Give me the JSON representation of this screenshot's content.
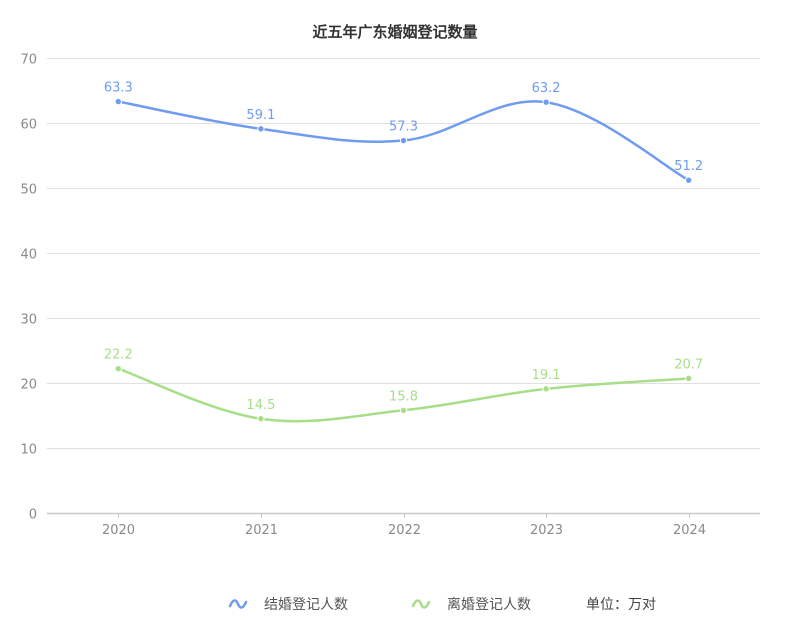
{
  "title": "近五年广东婚姻登记数量",
  "legend": {
    "items": [
      {
        "label": "结婚登记人数",
        "color": "#6f9bf0",
        "icon": "wave-icon"
      },
      {
        "label": "离婚登记人数",
        "color": "#a7de88",
        "icon": "wave-icon"
      }
    ],
    "unit": "单位：万对"
  },
  "chart_data": {
    "type": "line",
    "title": "近五年广东婚姻登记数量",
    "categories": [
      "2020",
      "2021",
      "2022",
      "2023",
      "2024"
    ],
    "series": [
      {
        "name": "结婚登记人数",
        "values": [
          63.3,
          59.1,
          57.3,
          63.2,
          51.2
        ],
        "color": "#6f9bf0"
      },
      {
        "name": "离婚登记人数",
        "values": [
          22.2,
          14.5,
          15.8,
          19.1,
          20.7
        ],
        "color": "#a7de88"
      }
    ],
    "xlabel": "",
    "ylabel": "",
    "ylim": [
      0,
      70
    ],
    "yticks": [
      0,
      10,
      20,
      30,
      40,
      50,
      60,
      70
    ],
    "grid": true,
    "smooth": true,
    "legend_position": "bottom",
    "unit": "单位：万对"
  }
}
